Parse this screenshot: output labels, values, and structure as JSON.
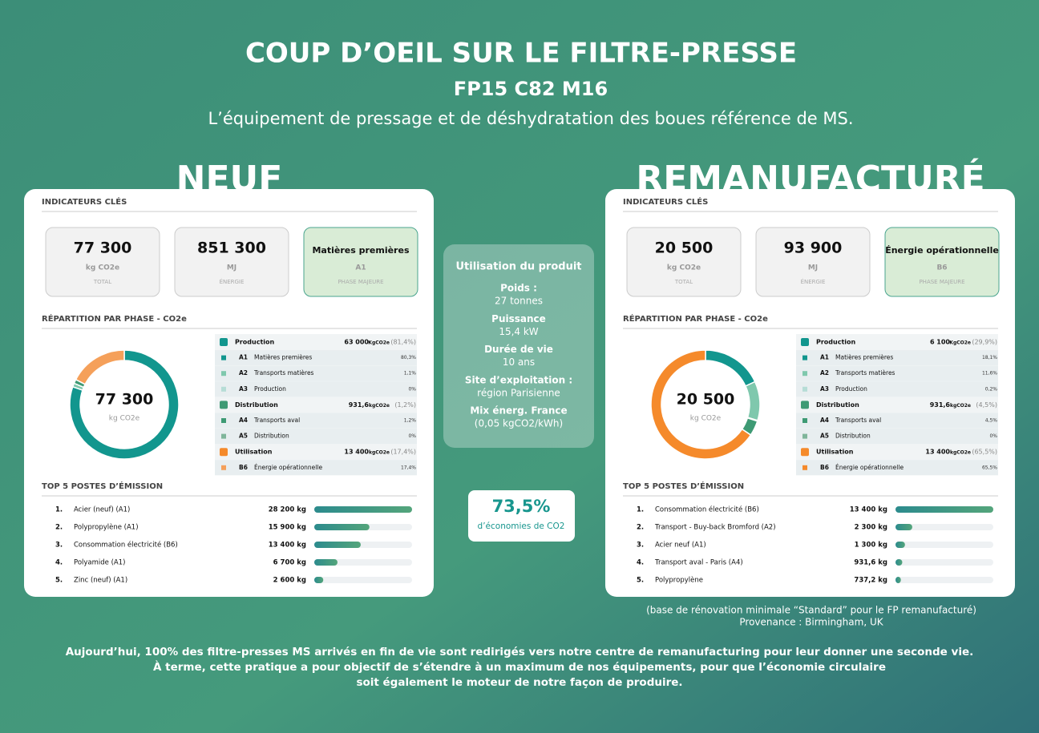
{
  "header": {
    "title": "COUP D’OEIL SUR LE FILTRE-PRESSE",
    "model": "FP15 C82 M16",
    "subtitle": "L’équipement de pressage et de déshydratation des boues référence de MS."
  },
  "panels": [
    {
      "heading": "NEUF",
      "kpi_title": "INDICATEURS CLÉS",
      "kpis": [
        {
          "value": "77 300",
          "unit": "kg CO2e",
          "label": "TOTAL"
        },
        {
          "value": "851 300",
          "unit": "MJ",
          "label": "ÉNERGIE"
        },
        {
          "value": "Matières premières",
          "unit": "A1",
          "label": "PHASE MAJEURE"
        }
      ],
      "breakdown_title": "RÉPARTITION PAR PHASE - CO2e",
      "donut": {
        "center": "77 300",
        "unit": "kg CO2e"
      },
      "phases": [
        {
          "name": "Production",
          "amount": "63 000",
          "unit": "KgCO2e",
          "share": "(81,4%)",
          "color": "#12968e",
          "items": [
            {
              "code": "A1",
              "name": "Matières premières",
              "value": 80.3,
              "label": "80,3%",
              "color": "#12968e"
            },
            {
              "code": "A2",
              "name": "Transports matières",
              "value": 1.1,
              "label": "1,1%",
              "color": "#7fc8ad"
            },
            {
              "code": "A3",
              "name": "Production",
              "value": 0,
              "label": "0%",
              "color": "#b6ddd6"
            }
          ]
        },
        {
          "name": "Distribution",
          "amount": "931,6",
          "unit": "kgCO2e",
          "share": "(1,2%)",
          "color": "#3e9a74",
          "items": [
            {
              "code": "A4",
              "name": "Transports aval",
              "value": 1.2,
              "label": "1,2%",
              "color": "#3e9a74"
            },
            {
              "code": "A5",
              "name": "Distribution",
              "value": 0,
              "label": "0%",
              "color": "#7fb59a"
            }
          ]
        },
        {
          "name": "Utilisation",
          "amount": "13 400",
          "unit": "kgCO2e",
          "share": "(17,4%)",
          "color": "#f58a2b",
          "items": [
            {
              "code": "B6",
              "name": "Énergie opérationnelle",
              "value": 17.4,
              "label": "17,4%",
              "color": "#f5a05a"
            }
          ]
        }
      ],
      "top_title": "TOP 5 POSTES D’ÉMISSION",
      "top": {
        "ranks": [
          "1.",
          "2.",
          "3.",
          "4.",
          "5."
        ],
        "names": [
          "Acier (neuf) (A1)",
          "Polypropylène (A1)",
          "Consommation électricité (B6)",
          "Polyamide (A1)",
          "Zinc (neuf) (A1)"
        ],
        "values": [
          28200,
          15900,
          13400,
          6700,
          2600
        ],
        "value_labels": [
          "28 200 kg",
          "15 900 kg",
          "13 400 kg",
          "6 700 kg",
          "2 600 kg"
        ],
        "xlim": [
          0,
          28200
        ]
      }
    },
    {
      "heading": "REMANUFACTURÉ",
      "kpi_title": "INDICATEURS CLÉS",
      "kpis": [
        {
          "value": "20 500",
          "unit": "kg CO2e",
          "label": "TOTAL"
        },
        {
          "value": "93 900",
          "unit": "MJ",
          "label": "ÉNERGIE"
        },
        {
          "value": "Énergie opérationnelle",
          "unit": "B6",
          "label": "PHASE MAJEURE"
        }
      ],
      "breakdown_title": "RÉPARTITION PAR PHASE - CO2e",
      "donut": {
        "center": "20 500",
        "unit": "kg CO2e"
      },
      "phases": [
        {
          "name": "Production",
          "amount": "6 100",
          "unit": "KgCO2e",
          "share": "(29,9%)",
          "color": "#12968e",
          "items": [
            {
              "code": "A1",
              "name": "Matières premières",
              "value": 18.1,
              "label": "18,1%",
              "color": "#12968e"
            },
            {
              "code": "A2",
              "name": "Transports matières",
              "value": 11.6,
              "label": "11,6%",
              "color": "#7fc8ad"
            },
            {
              "code": "A3",
              "name": "Production",
              "value": 0.2,
              "label": "0,2%",
              "color": "#b6ddd6"
            }
          ]
        },
        {
          "name": "Distribution",
          "amount": "931,6",
          "unit": "kgCO2e",
          "share": "(4,5%)",
          "color": "#3e9a74",
          "items": [
            {
              "code": "A4",
              "name": "Transports aval",
              "value": 4.5,
              "label": "4,5%",
              "color": "#3e9a74"
            },
            {
              "code": "A5",
              "name": "Distribution",
              "value": 0,
              "label": "0%",
              "color": "#7fb59a"
            }
          ]
        },
        {
          "name": "Utilisation",
          "amount": "13 400",
          "unit": "kgCO2e",
          "share": "(65,5%)",
          "color": "#f58a2b",
          "items": [
            {
              "code": "B6",
              "name": "Énergie opérationnelle",
              "value": 65.5,
              "label": "65,5%",
              "color": "#f58a2b"
            }
          ]
        }
      ],
      "top_title": "TOP 5 POSTES D’ÉMISSION",
      "top": {
        "ranks": [
          "1.",
          "2.",
          "3.",
          "4.",
          "5."
        ],
        "names": [
          "Consommation électricité (B6)",
          "Transport - Buy-back Bromford (A2)",
          "Acier neuf (A1)",
          "Transport aval - Paris (A4)",
          "Polypropylène"
        ],
        "values": [
          13400,
          2300,
          1300,
          931.6,
          737.2
        ],
        "value_labels": [
          "13 400 kg",
          "2 300 kg",
          "1 300 kg",
          "931,6 kg",
          "737,2 kg"
        ],
        "xlim": [
          0,
          13400
        ]
      }
    }
  ],
  "center": {
    "title": "Utilisation du produit",
    "facts": [
      {
        "label": "Poids :",
        "value": "27 tonnes"
      },
      {
        "label": "Puissance",
        "value": "15,4 kW"
      },
      {
        "label": "Durée de vie",
        "value": "10 ans"
      },
      {
        "label": "Site d’exploitation :",
        "value": "région Parisienne"
      },
      {
        "label": "Mix énerg. France",
        "value": "(0,05 kgCO2/kWh)"
      }
    ],
    "saving": {
      "value": "73,5%",
      "label": "d’économies de CO2"
    }
  },
  "note": [
    "(base de rénovation minimale “Standard” pour le FP remanufacturé)",
    "Provenance : Birmingham, UK"
  ],
  "footer": [
    "Aujourd’hui, 100% des filtre-presses MS arrivés en fin de vie sont redirigés vers notre centre de remanufacturing pour leur donner une seconde vie.",
    "À terme, cette pratique a pour objectif de s’étendre à un maximum de nos équipements, pour que l’économie circulaire",
    "soit également le moteur de notre façon de produire."
  ]
}
